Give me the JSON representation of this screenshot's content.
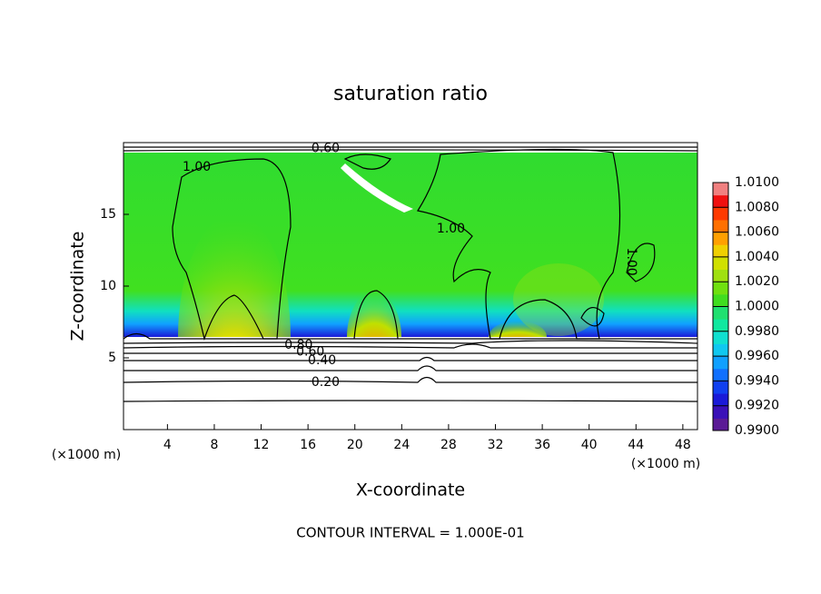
{
  "chart_data": {
    "type": "contour",
    "title": "saturation ratio",
    "x_label": "X-coordinate",
    "y_label": "Z-coordinate",
    "x_unit_label": "(×1000 m)",
    "footnote": "CONTOUR INTERVAL = 1.000E-01",
    "xlim": [
      0.25,
      49.25
    ],
    "xticks": [
      4,
      8,
      12,
      16,
      20,
      24,
      28,
      32,
      36,
      40,
      44,
      48
    ],
    "ylim": [
      0,
      20
    ],
    "yticks": [
      5,
      10,
      15
    ],
    "colorbar": {
      "lim": [
        0.99,
        1.01
      ],
      "ticks": [
        {
          "value": 0.99,
          "label": "0.9900"
        },
        {
          "value": 0.992,
          "label": "0.9920"
        },
        {
          "value": 0.994,
          "label": "0.9940"
        },
        {
          "value": 0.996,
          "label": "0.9960"
        },
        {
          "value": 0.998,
          "label": "0.9980"
        },
        {
          "value": 1.0,
          "label": "1.0000"
        },
        {
          "value": 1.002,
          "label": "1.0020"
        },
        {
          "value": 1.004,
          "label": "1.0040"
        },
        {
          "value": 1.006,
          "label": "1.0060"
        },
        {
          "value": 1.008,
          "label": "1.0080"
        },
        {
          "value": 1.01,
          "label": "1.0100"
        }
      ],
      "colors": [
        "#5b1a96",
        "#3a10b8",
        "#1a1ad8",
        "#1040f0",
        "#1070ff",
        "#10a0ff",
        "#10c8f0",
        "#10e0d0",
        "#10e8a0",
        "#20e070",
        "#40dd20",
        "#70e010",
        "#a0e010",
        "#d0e000",
        "#f0d000",
        "#ffa000",
        "#ff7000",
        "#ff3a00",
        "#f01010",
        "#f08080"
      ]
    },
    "contour_labels": [
      {
        "value": 1.0,
        "label": "1.00",
        "x": 6.5,
        "y": 18.3
      },
      {
        "value": 1.0,
        "label": "1.00",
        "x": 28.2,
        "y": 14.0
      },
      {
        "value": 1.0,
        "label": "1.00",
        "x": 43.6,
        "y": 11.7
      },
      {
        "value": 0.6,
        "label": "0.60",
        "x": 17.5,
        "y": 19.6
      },
      {
        "value": 0.8,
        "label": "0.80",
        "x": 15.2,
        "y": 5.9
      },
      {
        "value": 0.6,
        "label": "0.60",
        "x": 16.2,
        "y": 5.4
      },
      {
        "value": 0.4,
        "label": "0.40",
        "x": 17.2,
        "y": 4.8
      },
      {
        "value": 0.2,
        "label": "0.20",
        "x": 17.5,
        "y": 3.3
      }
    ]
  }
}
